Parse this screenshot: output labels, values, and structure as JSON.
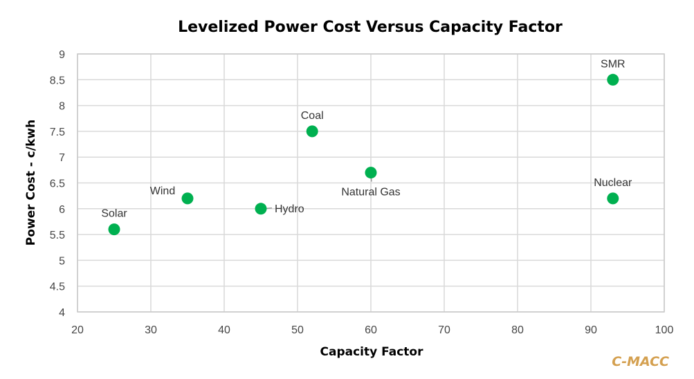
{
  "chart_data": {
    "type": "scatter",
    "title": "Levelized Power Cost Versus Capacity Factor",
    "xlabel": "Capacity Factor",
    "ylabel": "Power Cost  - c/kwh",
    "xlim": [
      20,
      100
    ],
    "ylim": [
      4,
      9
    ],
    "x_ticks": [
      20,
      30,
      40,
      50,
      60,
      70,
      80,
      90,
      100
    ],
    "y_ticks": [
      4,
      4.5,
      5,
      5.5,
      6,
      6.5,
      7,
      7.5,
      8,
      8.5,
      9
    ],
    "x_tick_labels": [
      "20",
      "30",
      "40",
      "50",
      "60",
      "70",
      "80",
      "90",
      "100"
    ],
    "y_tick_labels": [
      "4",
      "4.5",
      "5",
      "5.5",
      "6",
      "6.5",
      "7",
      "7.5",
      "8",
      "8.5",
      "9"
    ],
    "grid": true,
    "legend": "none",
    "marker_color": "#00b050",
    "points": [
      {
        "label": "Solar",
        "x": 25,
        "y": 5.6,
        "label_pos": "above"
      },
      {
        "label": "Wind",
        "x": 35,
        "y": 6.2,
        "label_pos": "above-left"
      },
      {
        "label": "Hydro",
        "x": 45,
        "y": 6.0,
        "label_pos": "right"
      },
      {
        "label": "Coal",
        "x": 52,
        "y": 7.5,
        "label_pos": "above"
      },
      {
        "label": "Natural Gas",
        "x": 60,
        "y": 6.7,
        "label_pos": "below"
      },
      {
        "label": "SMR",
        "x": 93,
        "y": 8.5,
        "label_pos": "above"
      },
      {
        "label": "Nuclear",
        "x": 93,
        "y": 6.2,
        "label_pos": "above"
      }
    ]
  },
  "watermark": {
    "text": "C-MACC",
    "color": "#d4a050"
  }
}
